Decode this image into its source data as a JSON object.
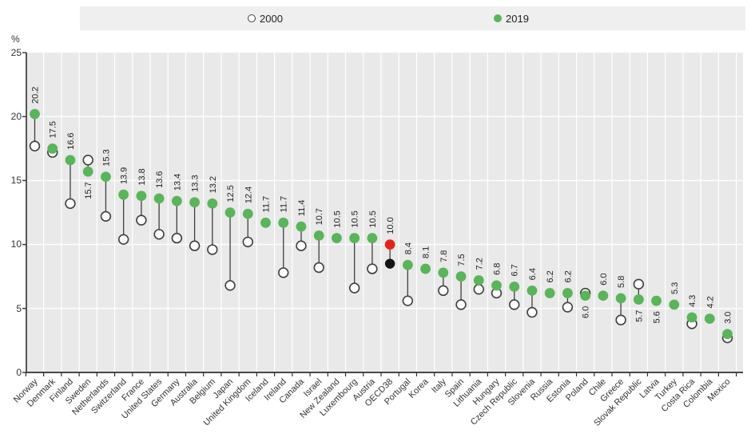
{
  "legend": {
    "year_2000_label": "2000",
    "year_2019_label": "2019"
  },
  "y_axis": {
    "unit_label": "%",
    "tick_labels": [
      "25",
      "20",
      "15",
      "10",
      "5",
      "0"
    ]
  },
  "chart_data": {
    "type": "scatter",
    "subtype": "dumbbell-dot-plot",
    "title": "",
    "ylabel": "%",
    "ylim": [
      0,
      25
    ],
    "yticks": [
      0,
      5,
      10,
      15,
      20,
      25
    ],
    "grid": true,
    "legend_entries": [
      "2000",
      "2019"
    ],
    "legend_position": "top",
    "colors": {
      "fill_2019": "#5ab45a",
      "open_2000_stroke": "#3f3f3f",
      "stem": "#3f3f3f",
      "highlight_2019": "#e2251a",
      "highlight_2000": "#141414",
      "plot_bg": "#e9e9e9",
      "legend_bg": "#efefef",
      "axis": "#2f2f2f"
    },
    "points": [
      {
        "country": "Norway",
        "y2000": 17.7,
        "y2019": 20.2,
        "label_pos": "above"
      },
      {
        "country": "Denmark",
        "y2000": 17.2,
        "y2019": 17.5,
        "label_pos": "above"
      },
      {
        "country": "Finland",
        "y2000": 13.2,
        "y2019": 16.6,
        "label_pos": "above"
      },
      {
        "country": "Sweden",
        "y2000": 16.6,
        "y2019": 15.7,
        "label_pos": "below"
      },
      {
        "country": "Netherlands",
        "y2000": 12.2,
        "y2019": 15.3,
        "label_pos": "above"
      },
      {
        "country": "Switzerland",
        "y2000": 10.4,
        "y2019": 13.9,
        "label_pos": "above"
      },
      {
        "country": "France",
        "y2000": 11.9,
        "y2019": 13.8,
        "label_pos": "above"
      },
      {
        "country": "United States",
        "y2000": 10.8,
        "y2019": 13.6,
        "label_pos": "above"
      },
      {
        "country": "Germany",
        "y2000": 10.5,
        "y2019": 13.4,
        "label_pos": "above"
      },
      {
        "country": "Australia",
        "y2000": 9.9,
        "y2019": 13.3,
        "label_pos": "above"
      },
      {
        "country": "Belgium",
        "y2000": 9.6,
        "y2019": 13.2,
        "label_pos": "above"
      },
      {
        "country": "Japan",
        "y2000": 6.8,
        "y2019": 12.5,
        "label_pos": "above"
      },
      {
        "country": "United Kingdom",
        "y2000": 10.2,
        "y2019": 12.4,
        "label_pos": "above"
      },
      {
        "country": "Iceland",
        "y2000": null,
        "y2019": 11.7,
        "label_pos": "above"
      },
      {
        "country": "Ireland",
        "y2000": 7.8,
        "y2019": 11.7,
        "label_pos": "above"
      },
      {
        "country": "Canada",
        "y2000": 9.9,
        "y2019": 11.4,
        "label_pos": "above"
      },
      {
        "country": "Israel",
        "y2000": 8.2,
        "y2019": 10.7,
        "label_pos": "above"
      },
      {
        "country": "New Zealand",
        "y2000": null,
        "y2019": 10.5,
        "label_pos": "above"
      },
      {
        "country": "Luxembourg",
        "y2000": 6.6,
        "y2019": 10.5,
        "label_pos": "above"
      },
      {
        "country": "Austria",
        "y2000": 8.1,
        "y2019": 10.5,
        "label_pos": "above"
      },
      {
        "country": "OECD38",
        "y2000": 8.5,
        "y2019": 10.0,
        "label_pos": "above",
        "highlight": true
      },
      {
        "country": "Portugal",
        "y2000": 5.6,
        "y2019": 8.4,
        "label_pos": "above"
      },
      {
        "country": "Korea",
        "y2000": null,
        "y2019": 8.1,
        "label_pos": "above"
      },
      {
        "country": "Italy",
        "y2000": 6.4,
        "y2019": 7.8,
        "label_pos": "above"
      },
      {
        "country": "Spain",
        "y2000": 5.3,
        "y2019": 7.5,
        "label_pos": "above"
      },
      {
        "country": "Lithuania",
        "y2000": 6.5,
        "y2019": 7.2,
        "label_pos": "above"
      },
      {
        "country": "Hungary",
        "y2000": 6.2,
        "y2019": 6.8,
        "label_pos": "above"
      },
      {
        "country": "Czech Republic",
        "y2000": 5.3,
        "y2019": 6.7,
        "label_pos": "above"
      },
      {
        "country": "Slovenia",
        "y2000": 4.7,
        "y2019": 6.4,
        "label_pos": "above"
      },
      {
        "country": "Russia",
        "y2000": null,
        "y2019": 6.2,
        "label_pos": "above"
      },
      {
        "country": "Estonia",
        "y2000": 5.1,
        "y2019": 6.2,
        "label_pos": "above"
      },
      {
        "country": "Poland",
        "y2000": 6.2,
        "y2019": 6.0,
        "label_pos": "below"
      },
      {
        "country": "Chile",
        "y2000": null,
        "y2019": 6.0,
        "label_pos": "above"
      },
      {
        "country": "Greece",
        "y2000": 4.1,
        "y2019": 5.8,
        "label_pos": "above"
      },
      {
        "country": "Slovak Republic",
        "y2000": 6.9,
        "y2019": 5.7,
        "label_pos": "below"
      },
      {
        "country": "Latvia",
        "y2000": null,
        "y2019": 5.6,
        "label_pos": "below"
      },
      {
        "country": "Turkey",
        "y2000": null,
        "y2019": 5.3,
        "label_pos": "above"
      },
      {
        "country": "Costa Rica",
        "y2000": 3.8,
        "y2019": 4.3,
        "label_pos": "above"
      },
      {
        "country": "Colombia",
        "y2000": null,
        "y2019": 4.2,
        "label_pos": "above"
      },
      {
        "country": "Mexico",
        "y2000": 2.7,
        "y2019": 3.0,
        "label_pos": "above"
      }
    ]
  }
}
